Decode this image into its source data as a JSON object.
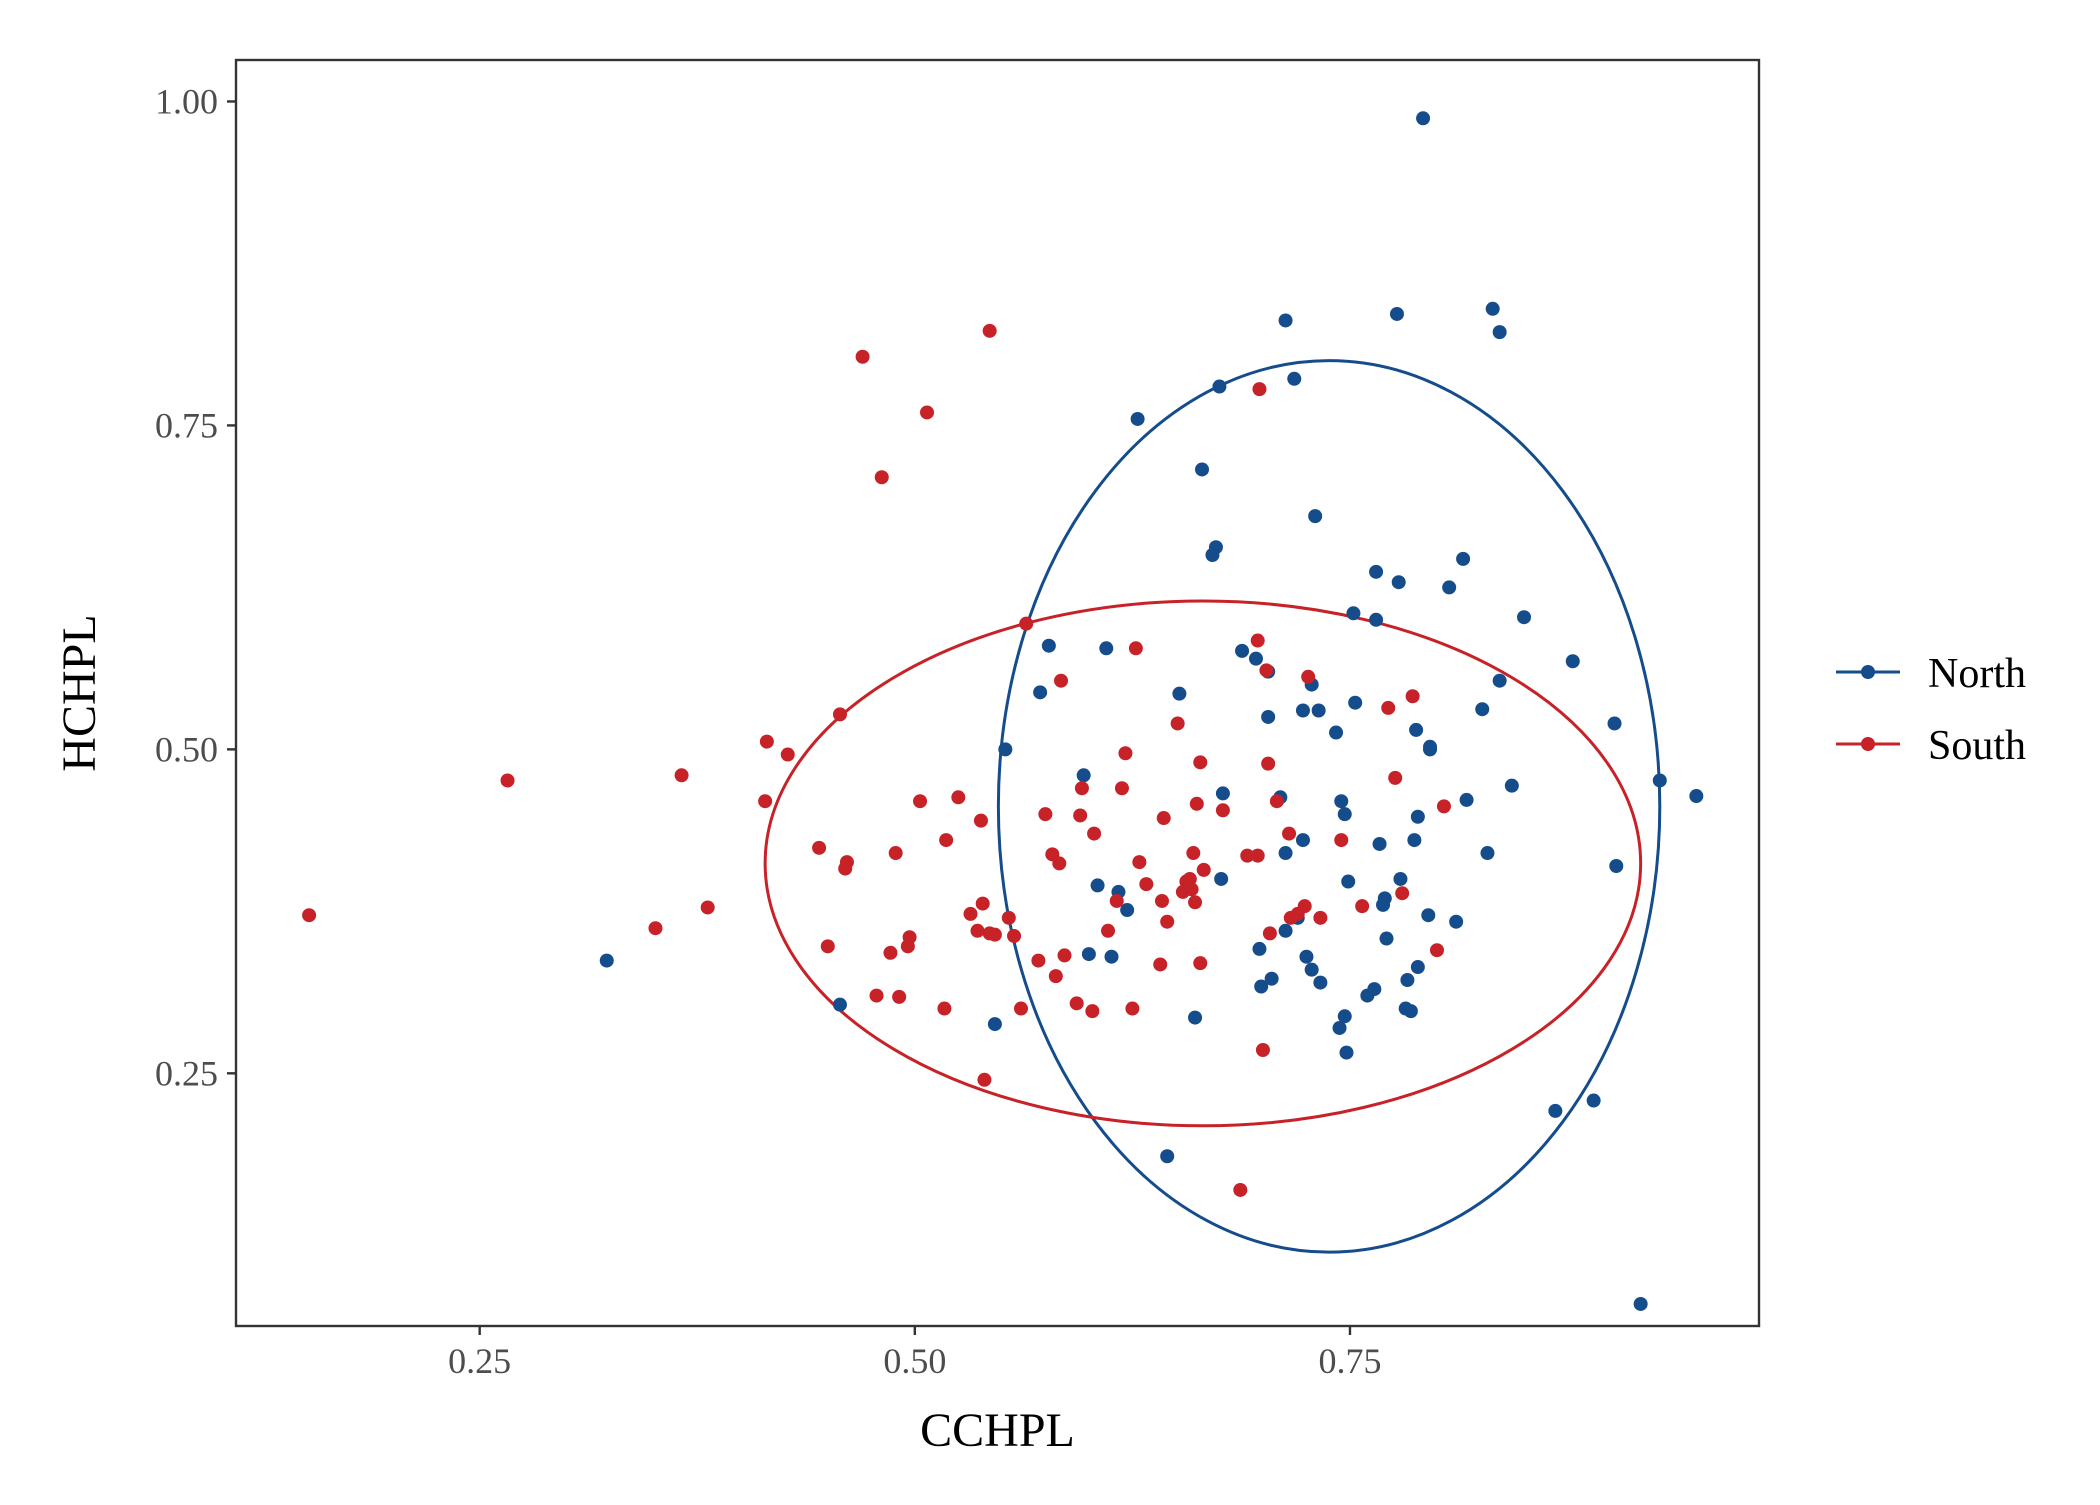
{
  "chart_data": {
    "type": "scatter",
    "xlabel": "CCHPL",
    "ylabel": "HCHPL",
    "xlim": [
      0.11,
      0.985
    ],
    "ylim": [
      0.055,
      1.032
    ],
    "x_ticks": [
      0.25,
      0.5,
      0.75
    ],
    "x_tick_labels": [
      "0.25",
      "0.50",
      "0.75"
    ],
    "y_ticks": [
      0.25,
      0.5,
      0.75,
      1.0
    ],
    "y_tick_labels": [
      "0.25",
      "0.50",
      "0.75",
      "1.00"
    ],
    "grid": false,
    "legend_position": "right",
    "series": [
      {
        "name": "North",
        "color": "#154c8c",
        "ellipse": {
          "center": [
            0.738,
            0.456
          ],
          "x_extent": [
            0.55,
            0.93
          ],
          "y_extent": [
            0.112,
            0.8
          ]
        },
        "points": [
          [
            0.323,
            0.337
          ],
          [
            0.457,
            0.303
          ],
          [
            0.546,
            0.288
          ],
          [
            0.552,
            0.5
          ],
          [
            0.572,
            0.544
          ],
          [
            0.577,
            0.58
          ],
          [
            0.597,
            0.48
          ],
          [
            0.6,
            0.342
          ],
          [
            0.605,
            0.395
          ],
          [
            0.61,
            0.578
          ],
          [
            0.613,
            0.34
          ],
          [
            0.617,
            0.39
          ],
          [
            0.622,
            0.376
          ],
          [
            0.628,
            0.755
          ],
          [
            0.645,
            0.186
          ],
          [
            0.652,
            0.543
          ],
          [
            0.661,
            0.293
          ],
          [
            0.665,
            0.716
          ],
          [
            0.671,
            0.65
          ],
          [
            0.673,
            0.656
          ],
          [
            0.675,
            0.78
          ],
          [
            0.676,
            0.4
          ],
          [
            0.677,
            0.466
          ],
          [
            0.688,
            0.576
          ],
          [
            0.696,
            0.57
          ],
          [
            0.698,
            0.346
          ],
          [
            0.699,
            0.317
          ],
          [
            0.703,
            0.56
          ],
          [
            0.703,
            0.525
          ],
          [
            0.705,
            0.323
          ],
          [
            0.71,
            0.463
          ],
          [
            0.713,
            0.831
          ],
          [
            0.713,
            0.42
          ],
          [
            0.713,
            0.36
          ],
          [
            0.718,
            0.786
          ],
          [
            0.72,
            0.37
          ],
          [
            0.723,
            0.53
          ],
          [
            0.723,
            0.43
          ],
          [
            0.725,
            0.34
          ],
          [
            0.728,
            0.33
          ],
          [
            0.728,
            0.55
          ],
          [
            0.73,
            0.68
          ],
          [
            0.732,
            0.53
          ],
          [
            0.733,
            0.32
          ],
          [
            0.742,
            0.513
          ],
          [
            0.744,
            0.285
          ],
          [
            0.745,
            0.46
          ],
          [
            0.747,
            0.45
          ],
          [
            0.747,
            0.294
          ],
          [
            0.748,
            0.266
          ],
          [
            0.749,
            0.398
          ],
          [
            0.752,
            0.605
          ],
          [
            0.753,
            0.536
          ],
          [
            0.76,
            0.31
          ],
          [
            0.764,
            0.315
          ],
          [
            0.765,
            0.6
          ],
          [
            0.765,
            0.637
          ],
          [
            0.767,
            0.427
          ],
          [
            0.769,
            0.38
          ],
          [
            0.77,
            0.385
          ],
          [
            0.771,
            0.354
          ],
          [
            0.777,
            0.836
          ],
          [
            0.778,
            0.629
          ],
          [
            0.779,
            0.4
          ],
          [
            0.782,
            0.3
          ],
          [
            0.783,
            0.322
          ],
          [
            0.785,
            0.298
          ],
          [
            0.787,
            0.43
          ],
          [
            0.788,
            0.515
          ],
          [
            0.789,
            0.332
          ],
          [
            0.789,
            0.448
          ],
          [
            0.792,
            0.987
          ],
          [
            0.795,
            0.372
          ],
          [
            0.796,
            0.502
          ],
          [
            0.796,
            0.5
          ],
          [
            0.807,
            0.625
          ],
          [
            0.811,
            0.367
          ],
          [
            0.815,
            0.647
          ],
          [
            0.817,
            0.461
          ],
          [
            0.826,
            0.531
          ],
          [
            0.829,
            0.42
          ],
          [
            0.832,
            0.84
          ],
          [
            0.836,
            0.822
          ],
          [
            0.836,
            0.553
          ],
          [
            0.843,
            0.472
          ],
          [
            0.85,
            0.602
          ],
          [
            0.868,
            0.221
          ],
          [
            0.878,
            0.568
          ],
          [
            0.89,
            0.229
          ],
          [
            0.902,
            0.52
          ],
          [
            0.903,
            0.41
          ],
          [
            0.917,
            0.072
          ],
          [
            0.928,
            0.476
          ],
          [
            0.949,
            0.464
          ]
        ]
      },
      {
        "name": "South",
        "color": "#c72228",
        "ellipse": {
          "center": [
            0.6655,
            0.412
          ],
          "x_extent": [
            0.362,
            0.865
          ],
          "y_extent": [
            0.21,
            0.615
          ]
        },
        "points": [
          [
            0.152,
            0.372
          ],
          [
            0.266,
            0.476
          ],
          [
            0.351,
            0.362
          ],
          [
            0.366,
            0.48
          ],
          [
            0.381,
            0.378
          ],
          [
            0.414,
            0.46
          ],
          [
            0.415,
            0.506
          ],
          [
            0.427,
            0.496
          ],
          [
            0.445,
            0.424
          ],
          [
            0.45,
            0.348
          ],
          [
            0.457,
            0.527
          ],
          [
            0.46,
            0.408
          ],
          [
            0.461,
            0.413
          ],
          [
            0.47,
            0.803
          ],
          [
            0.478,
            0.31
          ],
          [
            0.481,
            0.71
          ],
          [
            0.486,
            0.343
          ],
          [
            0.489,
            0.42
          ],
          [
            0.491,
            0.309
          ],
          [
            0.496,
            0.348
          ],
          [
            0.497,
            0.355
          ],
          [
            0.503,
            0.46
          ],
          [
            0.507,
            0.76
          ],
          [
            0.517,
            0.3
          ],
          [
            0.518,
            0.43
          ],
          [
            0.525,
            0.463
          ],
          [
            0.532,
            0.373
          ],
          [
            0.536,
            0.36
          ],
          [
            0.538,
            0.445
          ],
          [
            0.539,
            0.381
          ],
          [
            0.54,
            0.245
          ],
          [
            0.543,
            0.823
          ],
          [
            0.543,
            0.358
          ],
          [
            0.546,
            0.357
          ],
          [
            0.554,
            0.37
          ],
          [
            0.557,
            0.356
          ],
          [
            0.561,
            0.3
          ],
          [
            0.564,
            0.597
          ],
          [
            0.571,
            0.337
          ],
          [
            0.575,
            0.45
          ],
          [
            0.579,
            0.419
          ],
          [
            0.581,
            0.325
          ],
          [
            0.583,
            0.412
          ],
          [
            0.584,
            0.553
          ],
          [
            0.586,
            0.341
          ],
          [
            0.593,
            0.304
          ],
          [
            0.595,
            0.449
          ],
          [
            0.596,
            0.47
          ],
          [
            0.602,
            0.298
          ],
          [
            0.603,
            0.435
          ],
          [
            0.611,
            0.36
          ],
          [
            0.616,
            0.383
          ],
          [
            0.619,
            0.47
          ],
          [
            0.621,
            0.497
          ],
          [
            0.625,
            0.3
          ],
          [
            0.627,
            0.578
          ],
          [
            0.629,
            0.413
          ],
          [
            0.633,
            0.396
          ],
          [
            0.641,
            0.334
          ],
          [
            0.642,
            0.383
          ],
          [
            0.643,
            0.447
          ],
          [
            0.645,
            0.367
          ],
          [
            0.651,
            0.52
          ],
          [
            0.654,
            0.39
          ],
          [
            0.656,
            0.398
          ],
          [
            0.658,
            0.4
          ],
          [
            0.659,
            0.392
          ],
          [
            0.66,
            0.42
          ],
          [
            0.661,
            0.382
          ],
          [
            0.662,
            0.458
          ],
          [
            0.664,
            0.49
          ],
          [
            0.664,
            0.335
          ],
          [
            0.666,
            0.407
          ],
          [
            0.677,
            0.453
          ],
          [
            0.687,
            0.16
          ],
          [
            0.691,
            0.418
          ],
          [
            0.697,
            0.418
          ],
          [
            0.697,
            0.584
          ],
          [
            0.698,
            0.778
          ],
          [
            0.7,
            0.268
          ],
          [
            0.702,
            0.561
          ],
          [
            0.703,
            0.489
          ],
          [
            0.704,
            0.358
          ],
          [
            0.708,
            0.46
          ],
          [
            0.715,
            0.435
          ],
          [
            0.716,
            0.37
          ],
          [
            0.72,
            0.373
          ],
          [
            0.724,
            0.379
          ],
          [
            0.726,
            0.556
          ],
          [
            0.733,
            0.37
          ],
          [
            0.745,
            0.43
          ],
          [
            0.757,
            0.379
          ],
          [
            0.772,
            0.532
          ],
          [
            0.776,
            0.478
          ],
          [
            0.78,
            0.389
          ],
          [
            0.786,
            0.541
          ],
          [
            0.8,
            0.345
          ],
          [
            0.804,
            0.456
          ]
        ]
      }
    ]
  }
}
